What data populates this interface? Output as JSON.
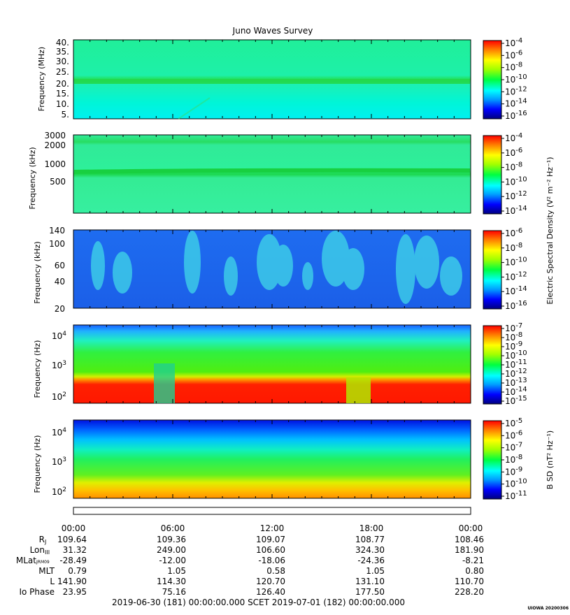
{
  "title": "Juno Waves Survey",
  "colorbars": [
    {
      "labels": [
        "-4",
        "-6",
        "-8",
        "-10",
        "-12",
        "-14",
        "-16"
      ]
    },
    {
      "labels": [
        "-4",
        "-6",
        "-8",
        "-10",
        "-12",
        "-14"
      ]
    },
    {
      "labels": [
        "-6",
        "-8",
        "-10",
        "-12",
        "-14",
        "-16"
      ]
    },
    {
      "labels": [
        "-7",
        "-8",
        "-9",
        "-10",
        "-11",
        "-12",
        "-13",
        "-14",
        "-15"
      ]
    },
    {
      "labels": [
        "-5",
        "-6",
        "-7",
        "-8",
        "-9",
        "-10",
        "-11"
      ]
    }
  ],
  "colorbar_titles": {
    "esd": "Electric Spectral Density (V² m⁻² Hz⁻¹)",
    "bsd": "B SD (nT² Hz⁻¹)"
  },
  "chart_data": [
    {
      "type": "heatmap",
      "panel": 1,
      "ylabel": "Frequency (MHz)",
      "yticks": [
        "40.",
        "35.",
        "30.",
        "25.",
        "20.",
        "15.",
        "10.",
        "5."
      ],
      "scale": "linear",
      "features": "emission band near 21 MHz"
    },
    {
      "type": "heatmap",
      "panel": 2,
      "ylabel": "Frequency (kHz)",
      "yticks": [
        "3000",
        "2000",
        "1000",
        "500"
      ],
      "scale": "log",
      "features": "bands near 2200 kHz and 650 kHz"
    },
    {
      "type": "heatmap",
      "panel": 3,
      "ylabel": "Frequency (kHz)",
      "yticks": [
        "140",
        "100",
        "60",
        "40",
        "20"
      ],
      "scale": "linear",
      "features": "intermittent emission bursts"
    },
    {
      "type": "heatmap",
      "panel": 4,
      "ylabel": "Frequency (Hz)",
      "yticks": [
        "10⁴",
        "10³",
        "10²"
      ],
      "scale": "log",
      "features": "intense emission below ~300 Hz"
    },
    {
      "type": "heatmap",
      "panel": 5,
      "ylabel": "Frequency (Hz)",
      "yticks": [
        "10⁴",
        "10³",
        "10²"
      ],
      "scale": "log",
      "features": "magnetic spectral density"
    }
  ],
  "time_axis": {
    "ticks": [
      "00:00",
      "06:00",
      "12:00",
      "18:00",
      "00:00"
    ],
    "rows": [
      {
        "label": "R",
        "sub": "J",
        "values": [
          "109.64",
          "109.36",
          "109.07",
          "108.77",
          "108.46"
        ]
      },
      {
        "label": "Lon",
        "sub": "III",
        "values": [
          "31.32",
          "249.00",
          "106.60",
          "324.30",
          "181.90"
        ]
      },
      {
        "label": "MLat",
        "sub": "JRM09",
        "values": [
          "-28.49",
          "-12.00",
          "-18.06",
          "-24.36",
          "-8.21"
        ]
      },
      {
        "label": "MLT",
        "sub": "",
        "values": [
          "0.79",
          "1.05",
          "0.58",
          "1.05",
          "0.80"
        ]
      },
      {
        "label": "L",
        "sub": "",
        "values": [
          "141.90",
          "114.30",
          "120.70",
          "131.10",
          "110.70"
        ]
      },
      {
        "label": "Io Phase",
        "sub": "",
        "values": [
          "23.95",
          "75.16",
          "126.40",
          "177.50",
          "228.20"
        ]
      }
    ]
  },
  "footer": "2019-06-30 (181) 00:00:00.000     SCET     2019-07-01 (182) 00:00:00.000",
  "stamp": "UIOWA 20200306"
}
